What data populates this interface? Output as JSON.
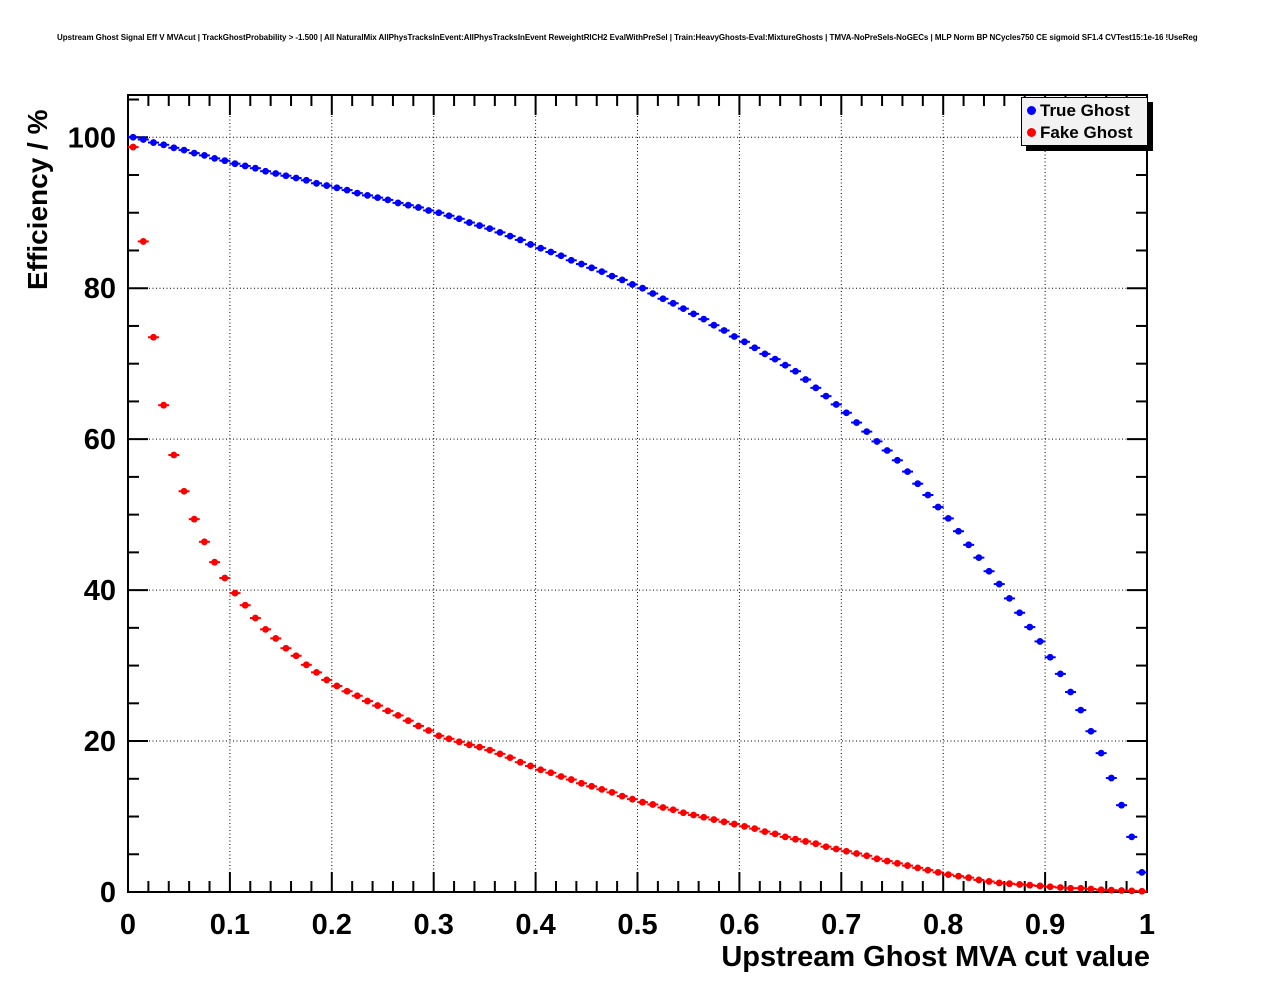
{
  "window": {
    "background": "#ffffff"
  },
  "chart_data": {
    "type": "scatter",
    "title": "Upstream Ghost Signal Eff V MVAcut | TrackGhostProbability > -1.500 | All NaturalMix AllPhysTracksInEvent:AllPhysTracksInEvent ReweightRICH2 EvalWithPreSel | Train:HeavyGhosts-Eval:MixtureGhosts | TMVA-NoPreSels-NoGECs | MLP Norm BP NCycles750 CE sigmoid SF1.4 CVTest15:1e-16 !UseReg",
    "xlabel": "Upstream Ghost MVA cut value",
    "ylabel": "Efficiency / %",
    "xlim": [
      0,
      1.0
    ],
    "ylim": [
      0,
      105.6
    ],
    "grid": true,
    "grid_style": "dotted",
    "legend_position": "top-right",
    "axes_color": "#000000",
    "x_ticks": {
      "major": [
        0,
        0.1,
        0.2,
        0.3,
        0.4,
        0.5,
        0.6,
        0.7,
        0.8,
        0.9,
        1
      ],
      "labels": [
        "0",
        "0.1",
        "0.2",
        "0.3",
        "0.4",
        "0.5",
        "0.6",
        "0.7",
        "0.8",
        "0.9",
        "1"
      ],
      "minor_step": 0.02
    },
    "y_ticks": {
      "major": [
        0,
        20,
        40,
        60,
        80,
        100
      ],
      "labels": [
        "0",
        "20",
        "40",
        "60",
        "80",
        "100"
      ],
      "minor_step": 5
    },
    "x_start": 0.005,
    "x_step": 0.01,
    "marker_style": "filled-circle-with-horizontal-error-bars",
    "series": [
      {
        "name": "True Ghost",
        "color": "#0000ff",
        "values": [
          100.0,
          99.7,
          99.3,
          99.0,
          98.6,
          98.3,
          97.9,
          97.6,
          97.2,
          96.9,
          96.5,
          96.2,
          95.9,
          95.5,
          95.2,
          94.9,
          94.6,
          94.3,
          93.9,
          93.6,
          93.3,
          93.0,
          92.6,
          92.3,
          92.0,
          91.7,
          91.3,
          91.0,
          90.7,
          90.3,
          90.0,
          89.6,
          89.2,
          88.7,
          88.3,
          87.9,
          87.4,
          86.9,
          86.4,
          85.8,
          85.3,
          84.8,
          84.3,
          83.7,
          83.2,
          82.7,
          82.2,
          81.6,
          81.1,
          80.5,
          80.0,
          79.3,
          78.6,
          78.0,
          77.3,
          76.6,
          75.9,
          75.1,
          74.4,
          73.6,
          72.9,
          72.1,
          71.3,
          70.6,
          69.8,
          69.0,
          67.9,
          66.8,
          65.7,
          64.6,
          63.5,
          62.2,
          61.0,
          59.7,
          58.5,
          57.2,
          55.7,
          54.1,
          52.6,
          51.0,
          49.5,
          47.8,
          46.0,
          44.3,
          42.5,
          40.8,
          38.9,
          37.0,
          35.1,
          33.2,
          31.1,
          28.9,
          26.5,
          24.1,
          21.3,
          18.4,
          15.1,
          11.5,
          7.3,
          2.6
        ]
      },
      {
        "name": "Fake Ghost",
        "color": "#ff0000",
        "values": [
          98.7,
          86.2,
          73.5,
          64.5,
          57.9,
          53.1,
          49.4,
          46.4,
          43.7,
          41.6,
          39.6,
          38.0,
          36.3,
          34.8,
          33.6,
          32.3,
          31.3,
          30.1,
          29.1,
          28.1,
          27.3,
          26.6,
          26.0,
          25.3,
          24.7,
          24.0,
          23.4,
          22.7,
          22.0,
          21.4,
          20.7,
          20.3,
          19.9,
          19.5,
          19.2,
          18.8,
          18.3,
          17.8,
          17.2,
          16.7,
          16.2,
          15.8,
          15.3,
          14.9,
          14.4,
          14.0,
          13.6,
          13.2,
          12.7,
          12.3,
          11.9,
          11.6,
          11.2,
          10.9,
          10.5,
          10.2,
          9.9,
          9.6,
          9.3,
          9.0,
          8.7,
          8.4,
          8.0,
          7.7,
          7.3,
          7.0,
          6.7,
          6.4,
          6.0,
          5.7,
          5.4,
          5.1,
          4.8,
          4.4,
          4.1,
          3.8,
          3.5,
          3.2,
          2.9,
          2.6,
          2.3,
          2.1,
          1.9,
          1.6,
          1.4,
          1.2,
          1.1,
          1.0,
          0.9,
          0.8,
          0.7,
          0.6,
          0.5,
          0.5,
          0.4,
          0.3,
          0.25,
          0.2,
          0.15,
          0.1
        ]
      }
    ]
  }
}
